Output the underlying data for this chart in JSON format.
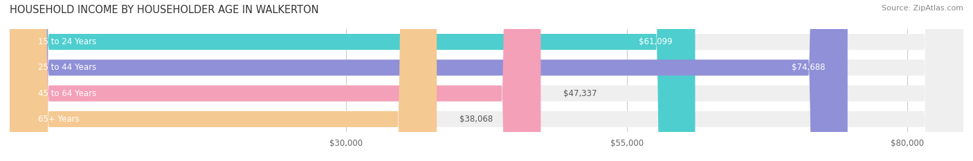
{
  "title": "HOUSEHOLD INCOME BY HOUSEHOLDER AGE IN WALKERTON",
  "source": "Source: ZipAtlas.com",
  "categories": [
    "15 to 24 Years",
    "25 to 44 Years",
    "45 to 64 Years",
    "65+ Years"
  ],
  "values": [
    61099,
    74688,
    47337,
    38068
  ],
  "bar_colors": [
    "#4ECECE",
    "#9090D8",
    "#F4A0B8",
    "#F5C992"
  ],
  "bar_bg_color": "#EFEFEF",
  "value_labels": [
    "$61,099",
    "$74,688",
    "$47,337",
    "$38,068"
  ],
  "xticks": [
    30000,
    55000,
    80000
  ],
  "xtick_labels": [
    "$30,000",
    "$55,000",
    "$80,000"
  ],
  "xmin": 0,
  "xmax": 85000,
  "title_fontsize": 10.5,
  "label_fontsize": 8.5,
  "tick_fontsize": 8.5,
  "source_fontsize": 8.0,
  "background_color": "#FFFFFF",
  "bar_height": 0.62,
  "value_inside_threshold": 55000
}
